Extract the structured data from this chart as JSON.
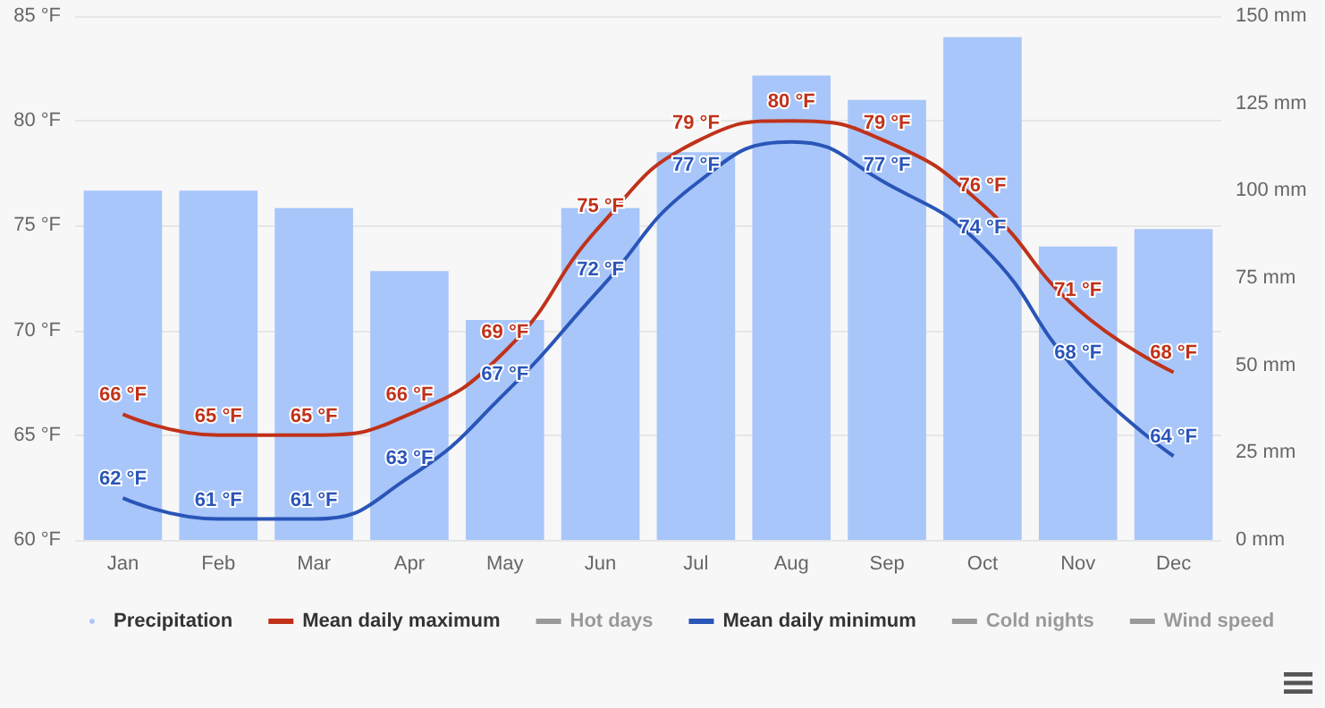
{
  "chart_data": {
    "type": "bar",
    "categories": [
      "Jan",
      "Feb",
      "Mar",
      "Apr",
      "May",
      "Jun",
      "Jul",
      "Aug",
      "Sep",
      "Oct",
      "Nov",
      "Dec"
    ],
    "series": [
      {
        "name": "Precipitation",
        "axis": "y2",
        "color": "#a8c6fa",
        "values": [
          100,
          100,
          95,
          77,
          63,
          95,
          111,
          133,
          126,
          144,
          84,
          89
        ]
      },
      {
        "name": "Mean daily maximum",
        "type": "line",
        "color": "#c0321a",
        "values": [
          66,
          65,
          65,
          66,
          69,
          75,
          79,
          80,
          79,
          76,
          71,
          68
        ],
        "value_labels": [
          "66 °F",
          "65 °F",
          "65 °F",
          "66 °F",
          "69 °F",
          "75 °F",
          "79 °F",
          "80 °F",
          "79 °F",
          "76 °F",
          "71 °F",
          "68 °F"
        ]
      },
      {
        "name": "Hot days",
        "type": "line",
        "color": "#999999",
        "values": [
          null,
          null,
          null,
          null,
          null,
          null,
          null,
          null,
          null,
          null,
          null,
          null
        ]
      },
      {
        "name": "Mean daily minimum",
        "type": "line",
        "color": "#2a55b8",
        "values": [
          62,
          61,
          61,
          63,
          67,
          72,
          77,
          79,
          77,
          74,
          68,
          64
        ],
        "value_labels": [
          "62 °F",
          "61 °F",
          "61 °F",
          "63 °F",
          "67 °F",
          "72 °F",
          "77 °F",
          null,
          "77 °F",
          "74 °F",
          "68 °F",
          "64 °F"
        ]
      },
      {
        "name": "Cold nights",
        "type": "line",
        "color": "#999999",
        "values": [
          null,
          null,
          null,
          null,
          null,
          null,
          null,
          null,
          null,
          null,
          null,
          null
        ]
      },
      {
        "name": "Wind speed",
        "type": "line",
        "color": "#999999",
        "values": [
          null,
          null,
          null,
          null,
          null,
          null,
          null,
          null,
          null,
          null,
          null,
          null
        ]
      }
    ],
    "ylim": [
      60,
      85
    ],
    "yticks": [
      {
        "value": 60,
        "label": "60 °F"
      },
      {
        "value": 65,
        "label": "65 °F"
      },
      {
        "value": 70,
        "label": "70 °F"
      },
      {
        "value": 75,
        "label": "75 °F"
      },
      {
        "value": 80,
        "label": "80 °F"
      },
      {
        "value": 85,
        "label": "85 °F"
      }
    ],
    "y2lim": [
      0,
      150
    ],
    "y2ticks": [
      {
        "value": 0,
        "label": "0 mm"
      },
      {
        "value": 25,
        "label": "25 mm"
      },
      {
        "value": 50,
        "label": "50 mm"
      },
      {
        "value": 75,
        "label": "75 mm"
      },
      {
        "value": 100,
        "label": "100 mm"
      },
      {
        "value": 125,
        "label": "125 mm"
      },
      {
        "value": 150,
        "label": "150 mm"
      }
    ],
    "grid": "y",
    "legend": "bottom",
    "marker": "none",
    "line_style": "solid"
  }
}
